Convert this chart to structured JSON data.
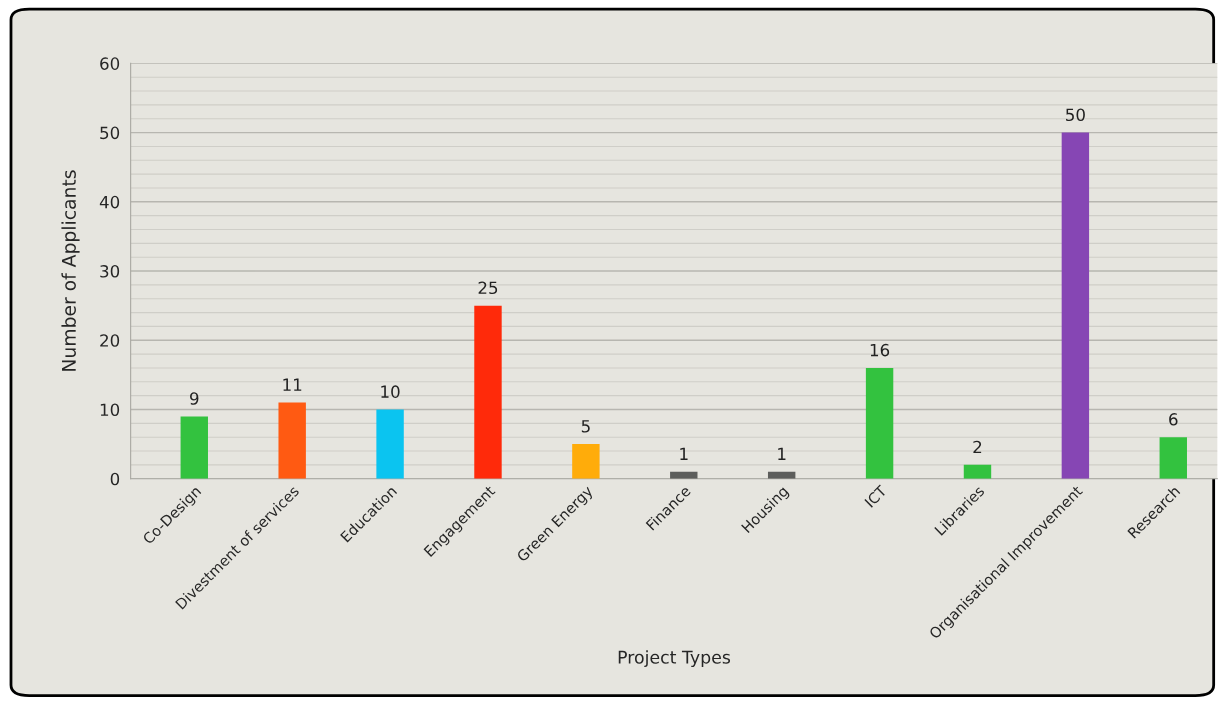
{
  "chart_data": {
    "type": "bar",
    "xlabel": "Project Types",
    "ylabel": "Number of Applicants",
    "categories": [
      "Co-Design",
      "Divestment of services",
      "Education",
      "Engagement",
      "Green Energy",
      "Finance",
      "Housing",
      "ICT",
      "Libraries",
      "Organisational Improvement",
      "Research"
    ],
    "values": [
      9,
      11,
      10,
      25,
      5,
      1,
      1,
      16,
      2,
      50,
      6
    ],
    "colors": [
      "#33c23f",
      "#ff5a12",
      "#0bc4f0",
      "#ff2a0a",
      "#ffac0a",
      "#5d5e5c",
      "#5d5e5c",
      "#33c23f",
      "#33c23f",
      "#8646b4",
      "#33c23f"
    ],
    "ylim": [
      0,
      60
    ],
    "yticks": [
      0,
      10,
      20,
      30,
      40,
      50,
      60
    ],
    "grid": "y",
    "data_labels": true
  }
}
